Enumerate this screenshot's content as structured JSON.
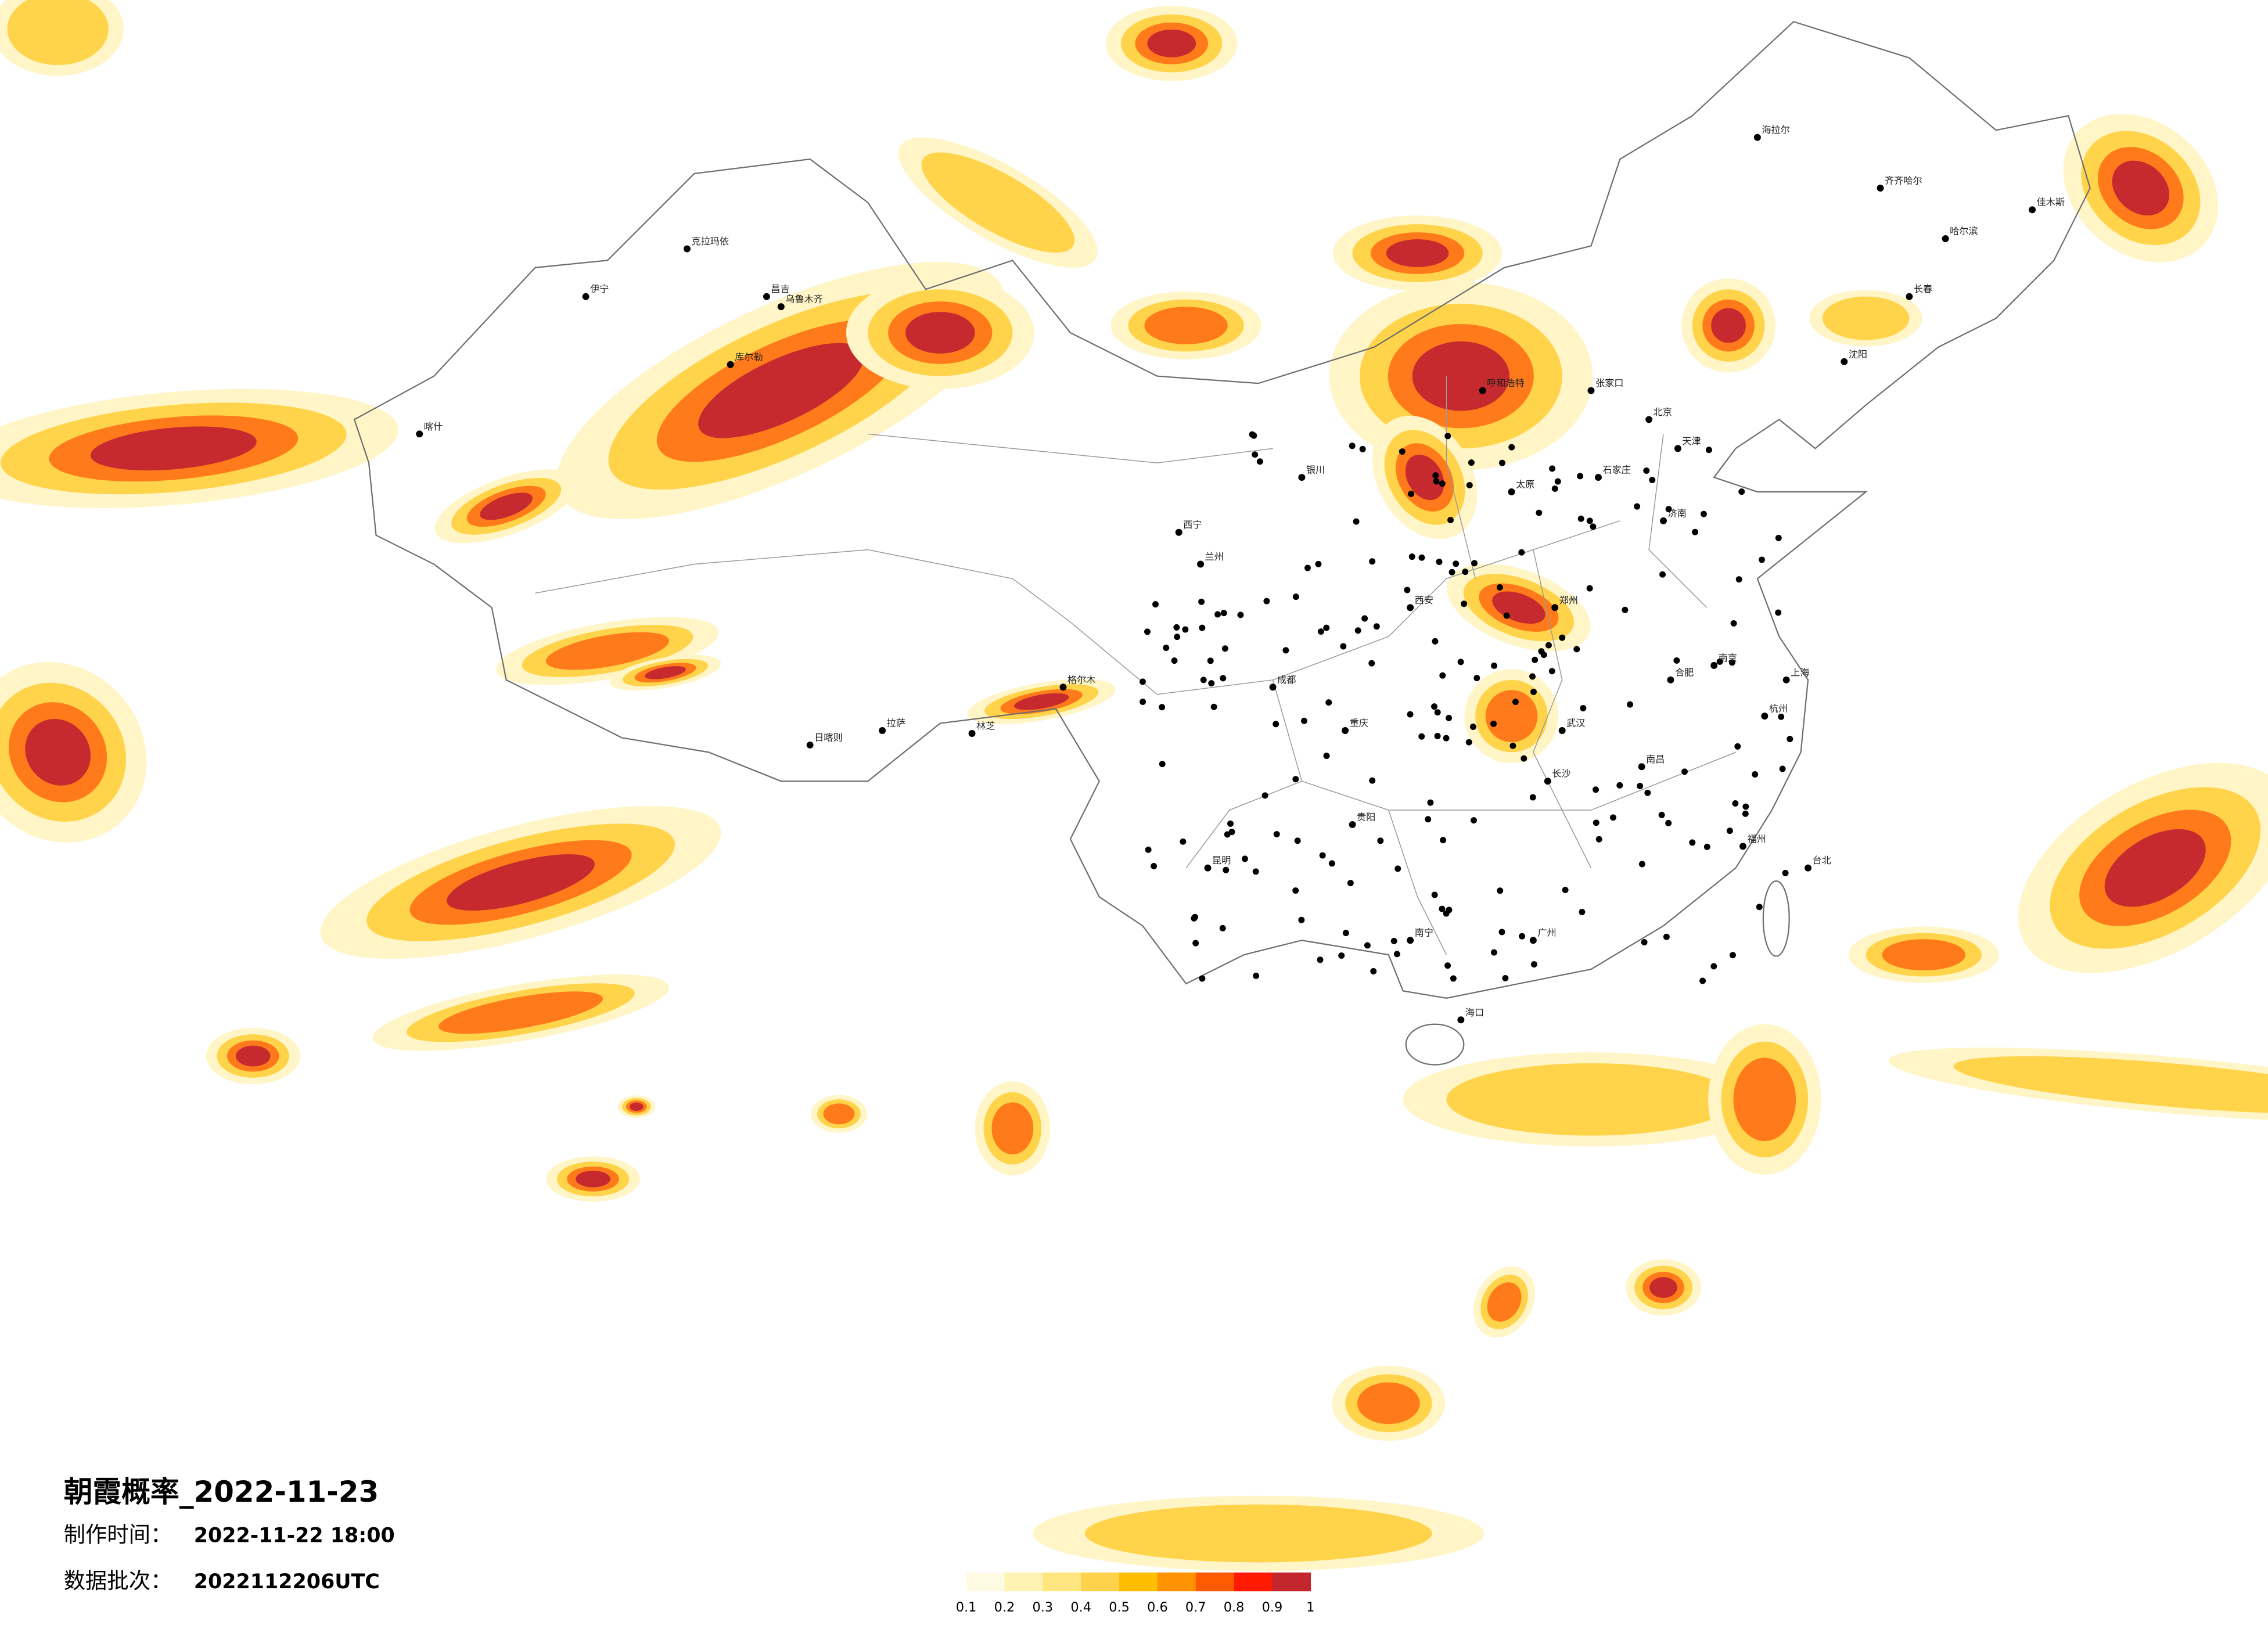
{
  "title": "朝霞概率_2022-11-23",
  "made_label": "制作时间：",
  "made_time": "2022-11-22 18:00",
  "batch_label": "数据批次：",
  "batch": "2022112206UTC",
  "legend": {
    "colors": [
      "#fffbe3",
      "#fff3b3",
      "#ffe680",
      "#ffd24d",
      "#ffbf00",
      "#ff9200",
      "#ff5a00",
      "#ff1a00",
      "#c4262e"
    ],
    "ticks": [
      0.1,
      0.2,
      0.3,
      0.4,
      0.5,
      0.6,
      0.7,
      0.8,
      0.9,
      1
    ]
  },
  "cities": [
    "伊宁",
    "克拉玛依",
    "昌吉",
    "乌鲁木齐",
    "库尔勒",
    "喀什",
    "日喀则",
    "拉萨",
    "林芝",
    "格尔木",
    "西宁",
    "兰州",
    "银川",
    "呼和浩特",
    "张家口",
    "北京",
    "天津",
    "石家庄",
    "太原",
    "济南",
    "郑州",
    "西安",
    "武汉",
    "长沙",
    "南昌",
    "合肥",
    "南京",
    "上海",
    "杭州",
    "福州",
    "台北",
    "广州",
    "南宁",
    "海口",
    "贵阳",
    "昆明",
    "重庆",
    "成都",
    "沈阳",
    "长春",
    "哈尔滨",
    "齐齐哈尔",
    "海拉尔",
    "佳木斯"
  ]
}
